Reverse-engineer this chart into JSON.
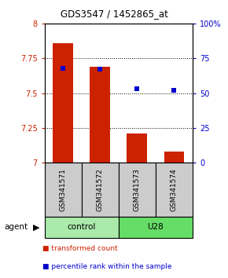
{
  "title": "GDS3547 / 1452865_at",
  "samples": [
    "GSM341571",
    "GSM341572",
    "GSM341573",
    "GSM341574"
  ],
  "bar_values": [
    7.86,
    7.69,
    7.21,
    7.08
  ],
  "percentile_values": [
    68,
    67,
    53,
    52
  ],
  "ylim_left": [
    7.0,
    8.0
  ],
  "ylim_right": [
    0,
    100
  ],
  "yticks_left": [
    7.0,
    7.25,
    7.5,
    7.75,
    8.0
  ],
  "yticks_right": [
    0,
    25,
    50,
    75,
    100
  ],
  "ytick_labels_left": [
    "7",
    "7.25",
    "7.5",
    "7.75",
    "8"
  ],
  "ytick_labels_right": [
    "0",
    "25",
    "50",
    "75",
    "100%"
  ],
  "bar_color": "#cc2200",
  "dot_color": "#0000cc",
  "bar_bottom": 7.0,
  "groups": [
    {
      "label": "control",
      "samples": [
        0,
        1
      ],
      "color": "#aaeaaa"
    },
    {
      "label": "U28",
      "samples": [
        2,
        3
      ],
      "color": "#66dd66"
    }
  ],
  "legend_items": [
    {
      "label": "transformed count",
      "color": "#cc2200"
    },
    {
      "label": "percentile rank within the sample",
      "color": "#0000cc"
    }
  ],
  "sample_box_color": "#cccccc",
  "left_axis_color": "#cc2200",
  "right_axis_color": "#0000cc"
}
